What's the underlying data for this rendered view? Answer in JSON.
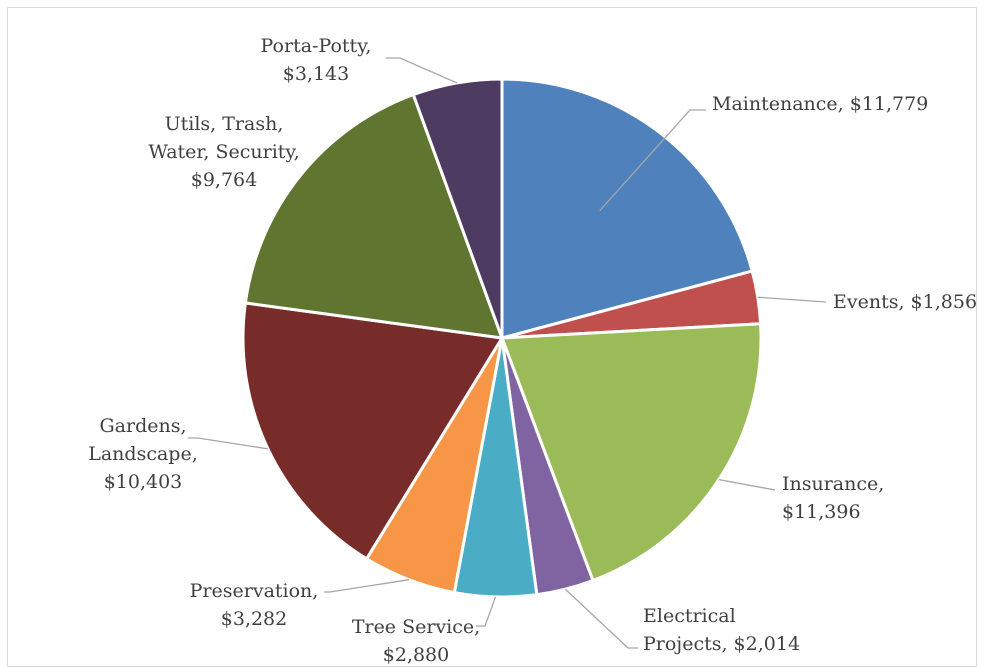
{
  "chart_data": {
    "type": "pie",
    "title": "",
    "slices": [
      {
        "name": "Maintenance",
        "value": 11779,
        "value_label": "$11,779",
        "color": "#4f81bd",
        "label_lines": [
          "Maintenance, $11,779"
        ]
      },
      {
        "name": "Events",
        "value": 1856,
        "value_label": "$1,856",
        "color": "#c0504d",
        "label_lines": [
          "Events, $1,856"
        ]
      },
      {
        "name": "Insurance",
        "value": 11396,
        "value_label": "$11,396",
        "color": "#9bbb59",
        "label_lines": [
          "Insurance,",
          "$11,396"
        ]
      },
      {
        "name": "Electrical Projects",
        "value": 2014,
        "value_label": "$2,014",
        "color": "#8064a2",
        "label_lines": [
          "Electrical",
          "Projects, $2,014"
        ]
      },
      {
        "name": "Tree Service",
        "value": 2880,
        "value_label": "$2,880",
        "color": "#4bacc6",
        "label_lines": [
          "Tree Service,",
          "$2,880"
        ]
      },
      {
        "name": "Preservation",
        "value": 3282,
        "value_label": "$3,282",
        "color": "#f79646",
        "label_lines": [
          "Preservation,",
          "$3,282"
        ]
      },
      {
        "name": "Gardens, Landscape",
        "value": 10403,
        "value_label": "$10,403",
        "color": "#772c2a",
        "label_lines": [
          "Gardens,",
          "Landscape,",
          "$10,403"
        ]
      },
      {
        "name": "Utils, Trash, Water, Security",
        "value": 9764,
        "value_label": "$9,764",
        "color": "#5f7530",
        "label_lines": [
          "Utils, Trash,",
          "Water, Security,",
          "$9,764"
        ]
      },
      {
        "name": "Porta-Potty",
        "value": 3143,
        "value_label": "$3,143",
        "color": "#4d3b62",
        "label_lines": [
          "Porta-Potty,",
          "$3,143"
        ]
      }
    ]
  }
}
